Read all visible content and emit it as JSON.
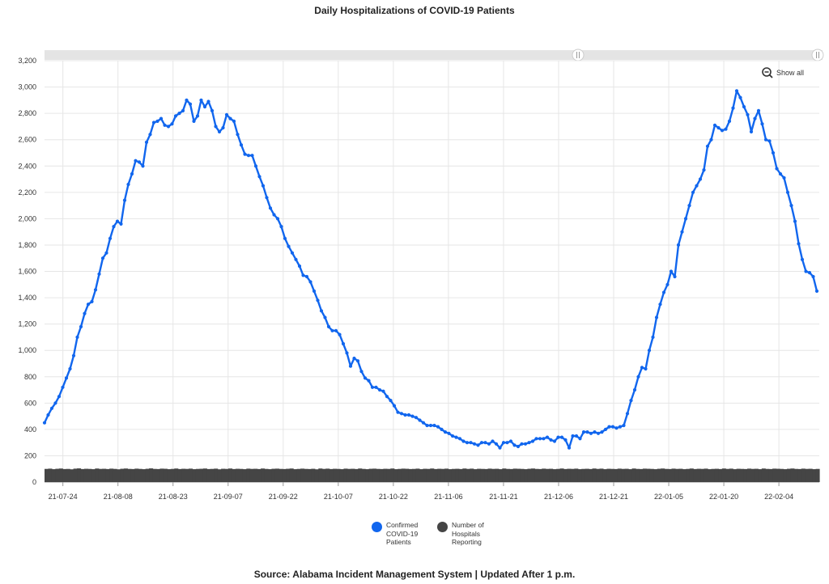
{
  "title": "Daily Hospitalizations of COVID-19 Patients",
  "source": "Source: Alabama Incident Management System | Updated After 1 p.m.",
  "show_all_label": "Show all",
  "legend": [
    {
      "label": "Confirmed COVID-19 Patients",
      "color": "#1166ee"
    },
    {
      "label": "Number of Hospitals Reporting",
      "color": "#454545"
    }
  ],
  "chart_data": {
    "type": "line",
    "title": "Daily Hospitalizations of COVID-19 Patients",
    "x_start": "2021-07-19",
    "x_end": "2022-02-15",
    "xticks": [
      "21-07-24",
      "21-08-08",
      "21-08-23",
      "21-09-07",
      "21-09-22",
      "21-10-07",
      "21-10-22",
      "21-11-06",
      "21-11-21",
      "21-12-06",
      "21-12-21",
      "22-01-05",
      "22-01-20",
      "22-02-04"
    ],
    "ylim": [
      0,
      3200
    ],
    "yticks": [
      "0",
      "200",
      "400",
      "600",
      "800",
      "1,000",
      "1,200",
      "1,400",
      "1,600",
      "1,800",
      "2,000",
      "2,200",
      "2,400",
      "2,600",
      "2,800",
      "3,000",
      "3,200"
    ],
    "grid": true,
    "legend_position": "bottom",
    "series": [
      {
        "name": "Confirmed COVID-19 Patients",
        "color": "#1166ee",
        "type": "line",
        "values": [
          450,
          510,
          560,
          600,
          650,
          720,
          790,
          860,
          960,
          1100,
          1180,
          1280,
          1350,
          1370,
          1460,
          1580,
          1700,
          1740,
          1850,
          1940,
          1980,
          1960,
          2140,
          2260,
          2340,
          2440,
          2430,
          2400,
          2580,
          2640,
          2730,
          2740,
          2760,
          2710,
          2700,
          2720,
          2780,
          2800,
          2820,
          2900,
          2870,
          2740,
          2780,
          2900,
          2850,
          2890,
          2820,
          2700,
          2660,
          2690,
          2790,
          2760,
          2740,
          2640,
          2560,
          2490,
          2480,
          2480,
          2400,
          2320,
          2250,
          2160,
          2080,
          2030,
          2000,
          1940,
          1850,
          1790,
          1740,
          1690,
          1640,
          1570,
          1560,
          1520,
          1450,
          1380,
          1300,
          1250,
          1180,
          1150,
          1150,
          1120,
          1050,
          980,
          880,
          940,
          920,
          840,
          790,
          770,
          720,
          720,
          700,
          690,
          650,
          620,
          580,
          530,
          520,
          510,
          510,
          500,
          490,
          470,
          450,
          430,
          430,
          430,
          420,
          400,
          380,
          370,
          350,
          340,
          330,
          310,
          300,
          300,
          290,
          280,
          300,
          300,
          290,
          310,
          290,
          260,
          300,
          300,
          310,
          280,
          270,
          290,
          290,
          300,
          310,
          330,
          330,
          330,
          340,
          320,
          310,
          340,
          340,
          320,
          260,
          350,
          350,
          330,
          380,
          380,
          370,
          380,
          370,
          380,
          400,
          420,
          420,
          410,
          420,
          430,
          520,
          620,
          700,
          800,
          870,
          860,
          1000,
          1100,
          1250,
          1350,
          1440,
          1500,
          1600,
          1560,
          1800,
          1900,
          2000,
          2100,
          2200,
          2250,
          2300,
          2370,
          2550,
          2600,
          2710,
          2690,
          2670,
          2680,
          2740,
          2840,
          2970,
          2920,
          2850,
          2790,
          2660,
          2760,
          2820,
          2720,
          2600,
          2590,
          2500,
          2380,
          2340,
          2310,
          2200,
          2100,
          1980,
          1810,
          1690,
          1600,
          1590,
          1560,
          1450
        ]
      },
      {
        "name": "Number of Hospitals Reporting",
        "color": "#454545",
        "type": "area",
        "values": [
          100,
          102,
          98,
          101,
          103,
          99,
          100,
          97,
          102,
          104,
          99,
          101,
          100,
          98,
          103,
          100,
          101,
          99,
          102,
          100,
          97,
          101,
          103,
          100,
          99,
          102,
          100,
          98,
          101,
          104,
          100,
          99,
          102,
          101,
          98,
          100,
          103,
          99,
          101,
          100,
          102,
          98,
          100,
          101,
          103,
          99,
          100,
          102,
          97,
          101,
          100,
          103,
          99,
          101,
          100,
          98,
          102,
          100,
          101,
          99,
          103,
          100,
          98,
          101,
          102,
          100,
          99,
          101,
          103,
          98,
          100,
          102,
          100,
          99,
          101,
          97,
          103,
          100,
          102,
          99,
          101,
          100,
          98,
          102,
          100,
          101,
          99,
          103,
          100,
          98,
          101,
          102,
          100,
          99,
          101,
          100,
          103,
          98,
          100,
          102,
          101,
          99,
          100,
          102,
          98,
          101,
          100,
          103,
          99,
          101,
          100,
          102,
          98,
          100,
          101,
          99,
          103,
          100,
          102,
          98,
          101,
          100,
          99,
          102,
          100,
          101,
          98,
          103,
          100,
          99,
          102,
          101,
          100,
          98,
          101,
          103,
          100,
          99,
          102,
          100,
          101,
          98,
          100,
          103,
          99,
          101,
          100,
          102,
          98,
          100,
          101,
          99,
          103,
          100,
          102,
          98,
          101,
          100,
          99,
          102,
          100,
          101,
          98,
          103,
          100,
          99,
          102,
          101,
          100,
          98,
          101,
          103,
          100,
          99,
          102,
          100,
          101,
          98,
          100,
          103,
          99,
          101,
          100,
          102,
          98,
          100,
          101,
          99,
          103,
          100,
          102,
          98,
          101,
          100,
          99,
          102,
          100,
          101,
          98,
          103,
          100,
          99,
          102,
          101,
          100,
          98,
          101,
          103,
          100,
          99,
          102,
          100,
          101,
          98,
          100
        ]
      }
    ]
  }
}
